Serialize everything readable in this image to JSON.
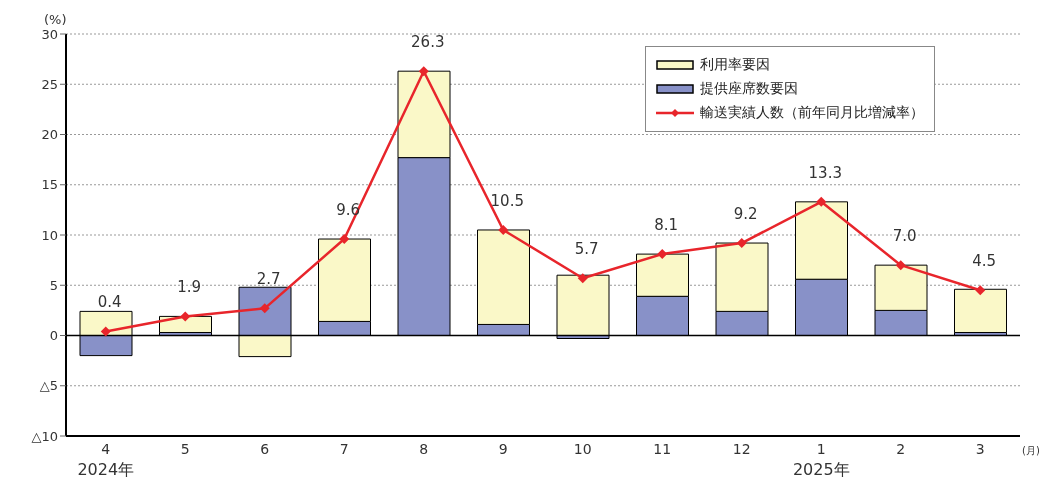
{
  "chart_data": {
    "type": "bar",
    "stacked": true,
    "ylabel": "(%)",
    "xlabel": "(月)",
    "categories": [
      "4",
      "5",
      "6",
      "7",
      "8",
      "9",
      "10",
      "11",
      "12",
      "1",
      "2",
      "3"
    ],
    "series": [
      {
        "name": "提供座席数要因",
        "color": "#8891c8",
        "values": [
          -2.0,
          0.3,
          4.8,
          1.4,
          17.7,
          1.1,
          -0.3,
          3.9,
          2.4,
          5.6,
          2.5,
          0.3
        ]
      },
      {
        "name": "利用率要因",
        "color": "#faf8c8",
        "values": [
          2.4,
          1.6,
          -2.1,
          8.2,
          8.6,
          9.4,
          6.0,
          4.2,
          6.8,
          7.7,
          4.5,
          4.3
        ]
      },
      {
        "name": "輸送実績人数（前年同月比増減率）",
        "type": "line",
        "color": "#e8252b",
        "marker": "diamond",
        "values": [
          0.4,
          1.9,
          2.7,
          9.6,
          26.3,
          10.5,
          5.7,
          8.1,
          9.2,
          13.3,
          7.0,
          4.5
        ],
        "value_labels": [
          "0.4",
          "1.9",
          "2.7",
          "9.6",
          "26.3",
          "10.5",
          "5.7",
          "8.1",
          "9.2",
          "13.3",
          "7.0",
          "4.5"
        ]
      }
    ],
    "ylim": [
      -10,
      30
    ],
    "yticks": [
      {
        "value": -10,
        "label": "△10"
      },
      {
        "value": -5,
        "label": "△5"
      },
      0,
      5,
      10,
      15,
      20,
      25,
      30
    ],
    "grid": "y",
    "legend": "top right",
    "ref_lines": [
      {
        "axis": "y",
        "value": 0,
        "color": "#000000"
      }
    ],
    "annotations": [
      "2024年",
      "2025年"
    ]
  }
}
